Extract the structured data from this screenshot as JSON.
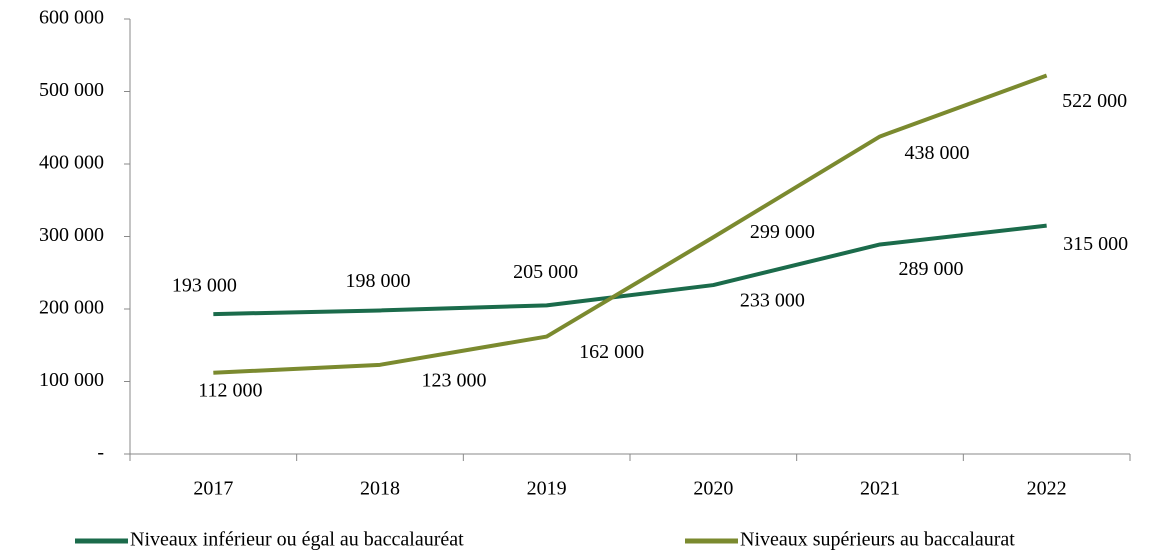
{
  "chart_data": {
    "type": "line",
    "categories": [
      "2017",
      "2018",
      "2019",
      "2020",
      "2021",
      "2022"
    ],
    "series": [
      {
        "name": "Niveaux inférieur ou égal au baccalauréat",
        "color": "#1b6b4b",
        "values": [
          193000,
          198000,
          205000,
          233000,
          289000,
          315000
        ],
        "value_labels": [
          "193 000",
          "198 000",
          "205 000",
          "233 000",
          "289 000",
          "315 000"
        ]
      },
      {
        "name": "Niveaux supérieurs au baccalaurat",
        "color": "#7b8a2f",
        "values": [
          112000,
          123000,
          162000,
          299000,
          438000,
          522000
        ],
        "value_labels": [
          "112 000",
          "123 000",
          "162 000",
          "299 000",
          "438 000",
          "522 000"
        ]
      }
    ],
    "ylim": [
      0,
      600000
    ],
    "yticks": [
      {
        "value": 0,
        "label": "-"
      },
      {
        "value": 100000,
        "label": "100 000"
      },
      {
        "value": 200000,
        "label": "200 000"
      },
      {
        "value": 300000,
        "label": "300 000"
      },
      {
        "value": 400000,
        "label": "400 000"
      },
      {
        "value": 500000,
        "label": "500 000"
      },
      {
        "value": 600000,
        "label": "600 000"
      }
    ],
    "grid": false,
    "legend": "bottom"
  }
}
